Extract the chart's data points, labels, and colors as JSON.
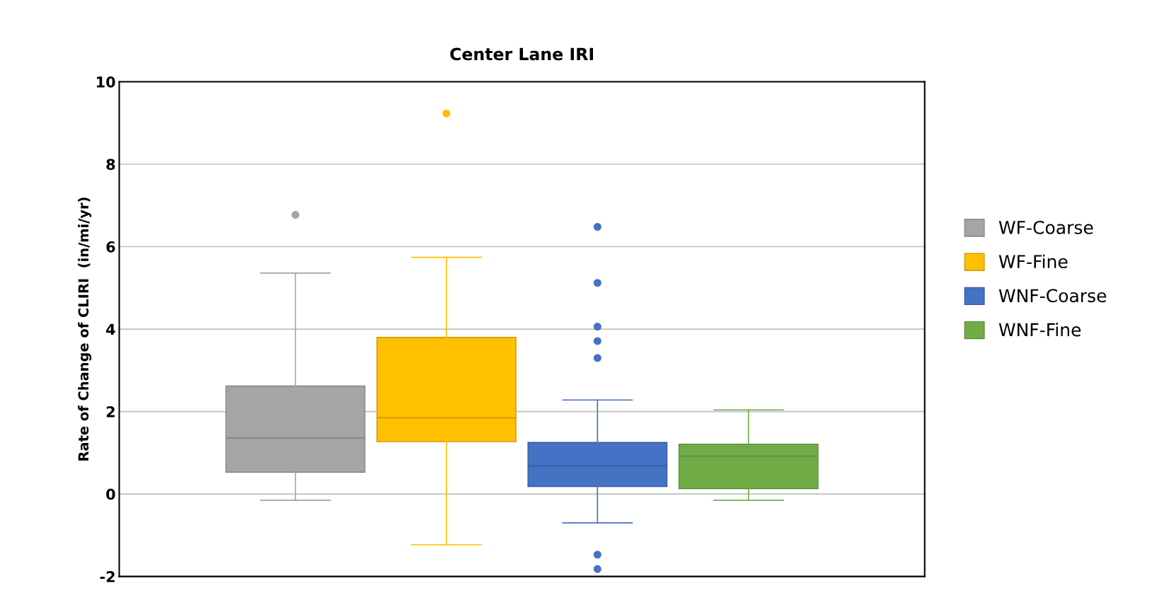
{
  "chart_data": {
    "type": "box",
    "title": "Center Lane IRI",
    "ylabel": "Rate of Change of CLIRI  (in/mi/yr)",
    "categories": [
      null
    ],
    "series": [
      {
        "name": "WF-Coarse",
        "color": "#a5a5a5",
        "boxes": [
          {
            "low": -0.15,
            "q1": 0.53,
            "median": 1.36,
            "q3": 2.62,
            "high": 5.36,
            "outliers": [
              6.77
            ]
          }
        ]
      },
      {
        "name": "WF-Fine",
        "color": "#ffc000",
        "boxes": [
          {
            "low": -1.23,
            "q1": 1.27,
            "median": 1.85,
            "q3": 3.8,
            "high": 5.74,
            "outliers": [
              9.23
            ]
          }
        ]
      },
      {
        "name": "WNF-Coarse",
        "color": "#4472c4",
        "boxes": [
          {
            "low": -0.7,
            "q1": 0.18,
            "median": 0.68,
            "q3": 1.25,
            "high": 2.28,
            "outliers": [
              6.48,
              5.12,
              4.06,
              3.71,
              3.3,
              -1.47,
              -1.82
            ]
          }
        ]
      },
      {
        "name": "WNF-Fine",
        "color": "#70ad47",
        "boxes": [
          {
            "low": -0.15,
            "q1": 0.13,
            "median": 0.92,
            "q3": 1.21,
            "high": 2.04
          }
        ]
      }
    ],
    "ylim": [
      -2,
      10
    ],
    "yticks": [
      -2,
      0,
      2,
      4,
      6,
      8,
      10
    ],
    "grid": "y",
    "legend": "right"
  }
}
